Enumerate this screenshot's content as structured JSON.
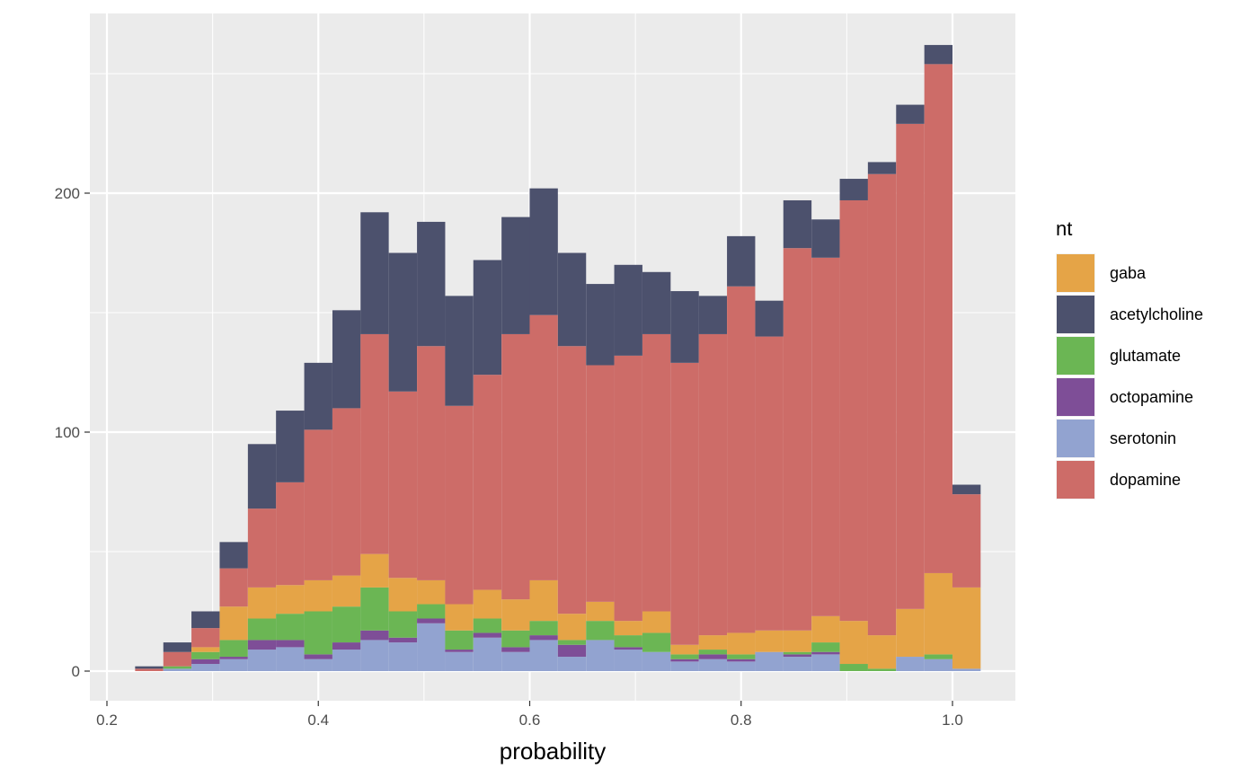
{
  "chart_data": {
    "type": "bar",
    "stacked": true,
    "xlabel": "probability",
    "ylabel": "",
    "xlim": [
      0.2,
      1.06
    ],
    "ylim": [
      -12,
      275
    ],
    "x_ticks": [
      0.2,
      0.4,
      0.6,
      0.8,
      1.0
    ],
    "x_tick_labels": [
      "0.2",
      "0.4",
      "0.6",
      "0.8",
      "1.0"
    ],
    "y_ticks": [
      0,
      100,
      200
    ],
    "y_tick_labels": [
      "0",
      "100",
      "200"
    ],
    "grid": true,
    "legend": {
      "title": "nt",
      "position": "right",
      "entries": [
        "gaba",
        "acetylcholine",
        "glutamate",
        "octopamine",
        "serotonin",
        "dopamine"
      ]
    },
    "bin_width": 0.02667,
    "bin_centers": [
      0.24,
      0.2667,
      0.2933,
      0.32,
      0.3467,
      0.3733,
      0.4,
      0.4267,
      0.4533,
      0.48,
      0.5067,
      0.5333,
      0.56,
      0.5867,
      0.6133,
      0.64,
      0.6667,
      0.6933,
      0.72,
      0.7467,
      0.7733,
      0.8,
      0.8267,
      0.8533,
      0.88,
      0.9067,
      0.9333,
      0.96,
      0.9867,
      1.0133
    ],
    "stack_order": [
      "serotonin",
      "octopamine",
      "glutamate",
      "gaba",
      "dopamine",
      "acetylcholine"
    ],
    "series": [
      {
        "name": "serotonin",
        "color": "#92A3D0",
        "values": [
          0,
          1,
          3,
          5,
          9,
          10,
          5,
          9,
          13,
          12,
          20,
          8,
          14,
          8,
          13,
          6,
          13,
          9,
          8,
          4,
          5,
          4,
          8,
          6,
          7,
          0,
          0,
          6,
          5,
          1
        ]
      },
      {
        "name": "octopamine",
        "color": "#7E4E97",
        "values": [
          0,
          0,
          2,
          1,
          4,
          3,
          2,
          3,
          4,
          2,
          2,
          1,
          2,
          2,
          2,
          5,
          0,
          1,
          0,
          1,
          2,
          1,
          0,
          1,
          1,
          0,
          0,
          0,
          0,
          0
        ]
      },
      {
        "name": "glutamate",
        "color": "#6BB654",
        "values": [
          0,
          1,
          3,
          7,
          9,
          11,
          18,
          15,
          18,
          11,
          6,
          8,
          6,
          7,
          6,
          2,
          8,
          5,
          8,
          2,
          2,
          2,
          0,
          1,
          4,
          3,
          1,
          0,
          2,
          0
        ]
      },
      {
        "name": "gaba",
        "color": "#E5A447",
        "values": [
          0,
          0,
          2,
          14,
          13,
          12,
          13,
          13,
          14,
          14,
          10,
          11,
          12,
          13,
          17,
          11,
          8,
          6,
          9,
          4,
          6,
          9,
          9,
          9,
          11,
          18,
          14,
          20,
          34,
          34
        ]
      },
      {
        "name": "dopamine",
        "color": "#CD6C68",
        "values": [
          1,
          6,
          8,
          16,
          33,
          43,
          63,
          70,
          92,
          78,
          98,
          83,
          90,
          111,
          111,
          112,
          99,
          111,
          116,
          118,
          126,
          145,
          123,
          160,
          150,
          176,
          193,
          203,
          213,
          39
        ]
      },
      {
        "name": "acetylcholine",
        "color": "#4C516D",
        "values": [
          1,
          4,
          7,
          11,
          27,
          30,
          28,
          41,
          51,
          58,
          52,
          46,
          48,
          49,
          53,
          39,
          34,
          38,
          26,
          30,
          16,
          21,
          15,
          20,
          16,
          9,
          5,
          8,
          8,
          4
        ]
      }
    ]
  }
}
